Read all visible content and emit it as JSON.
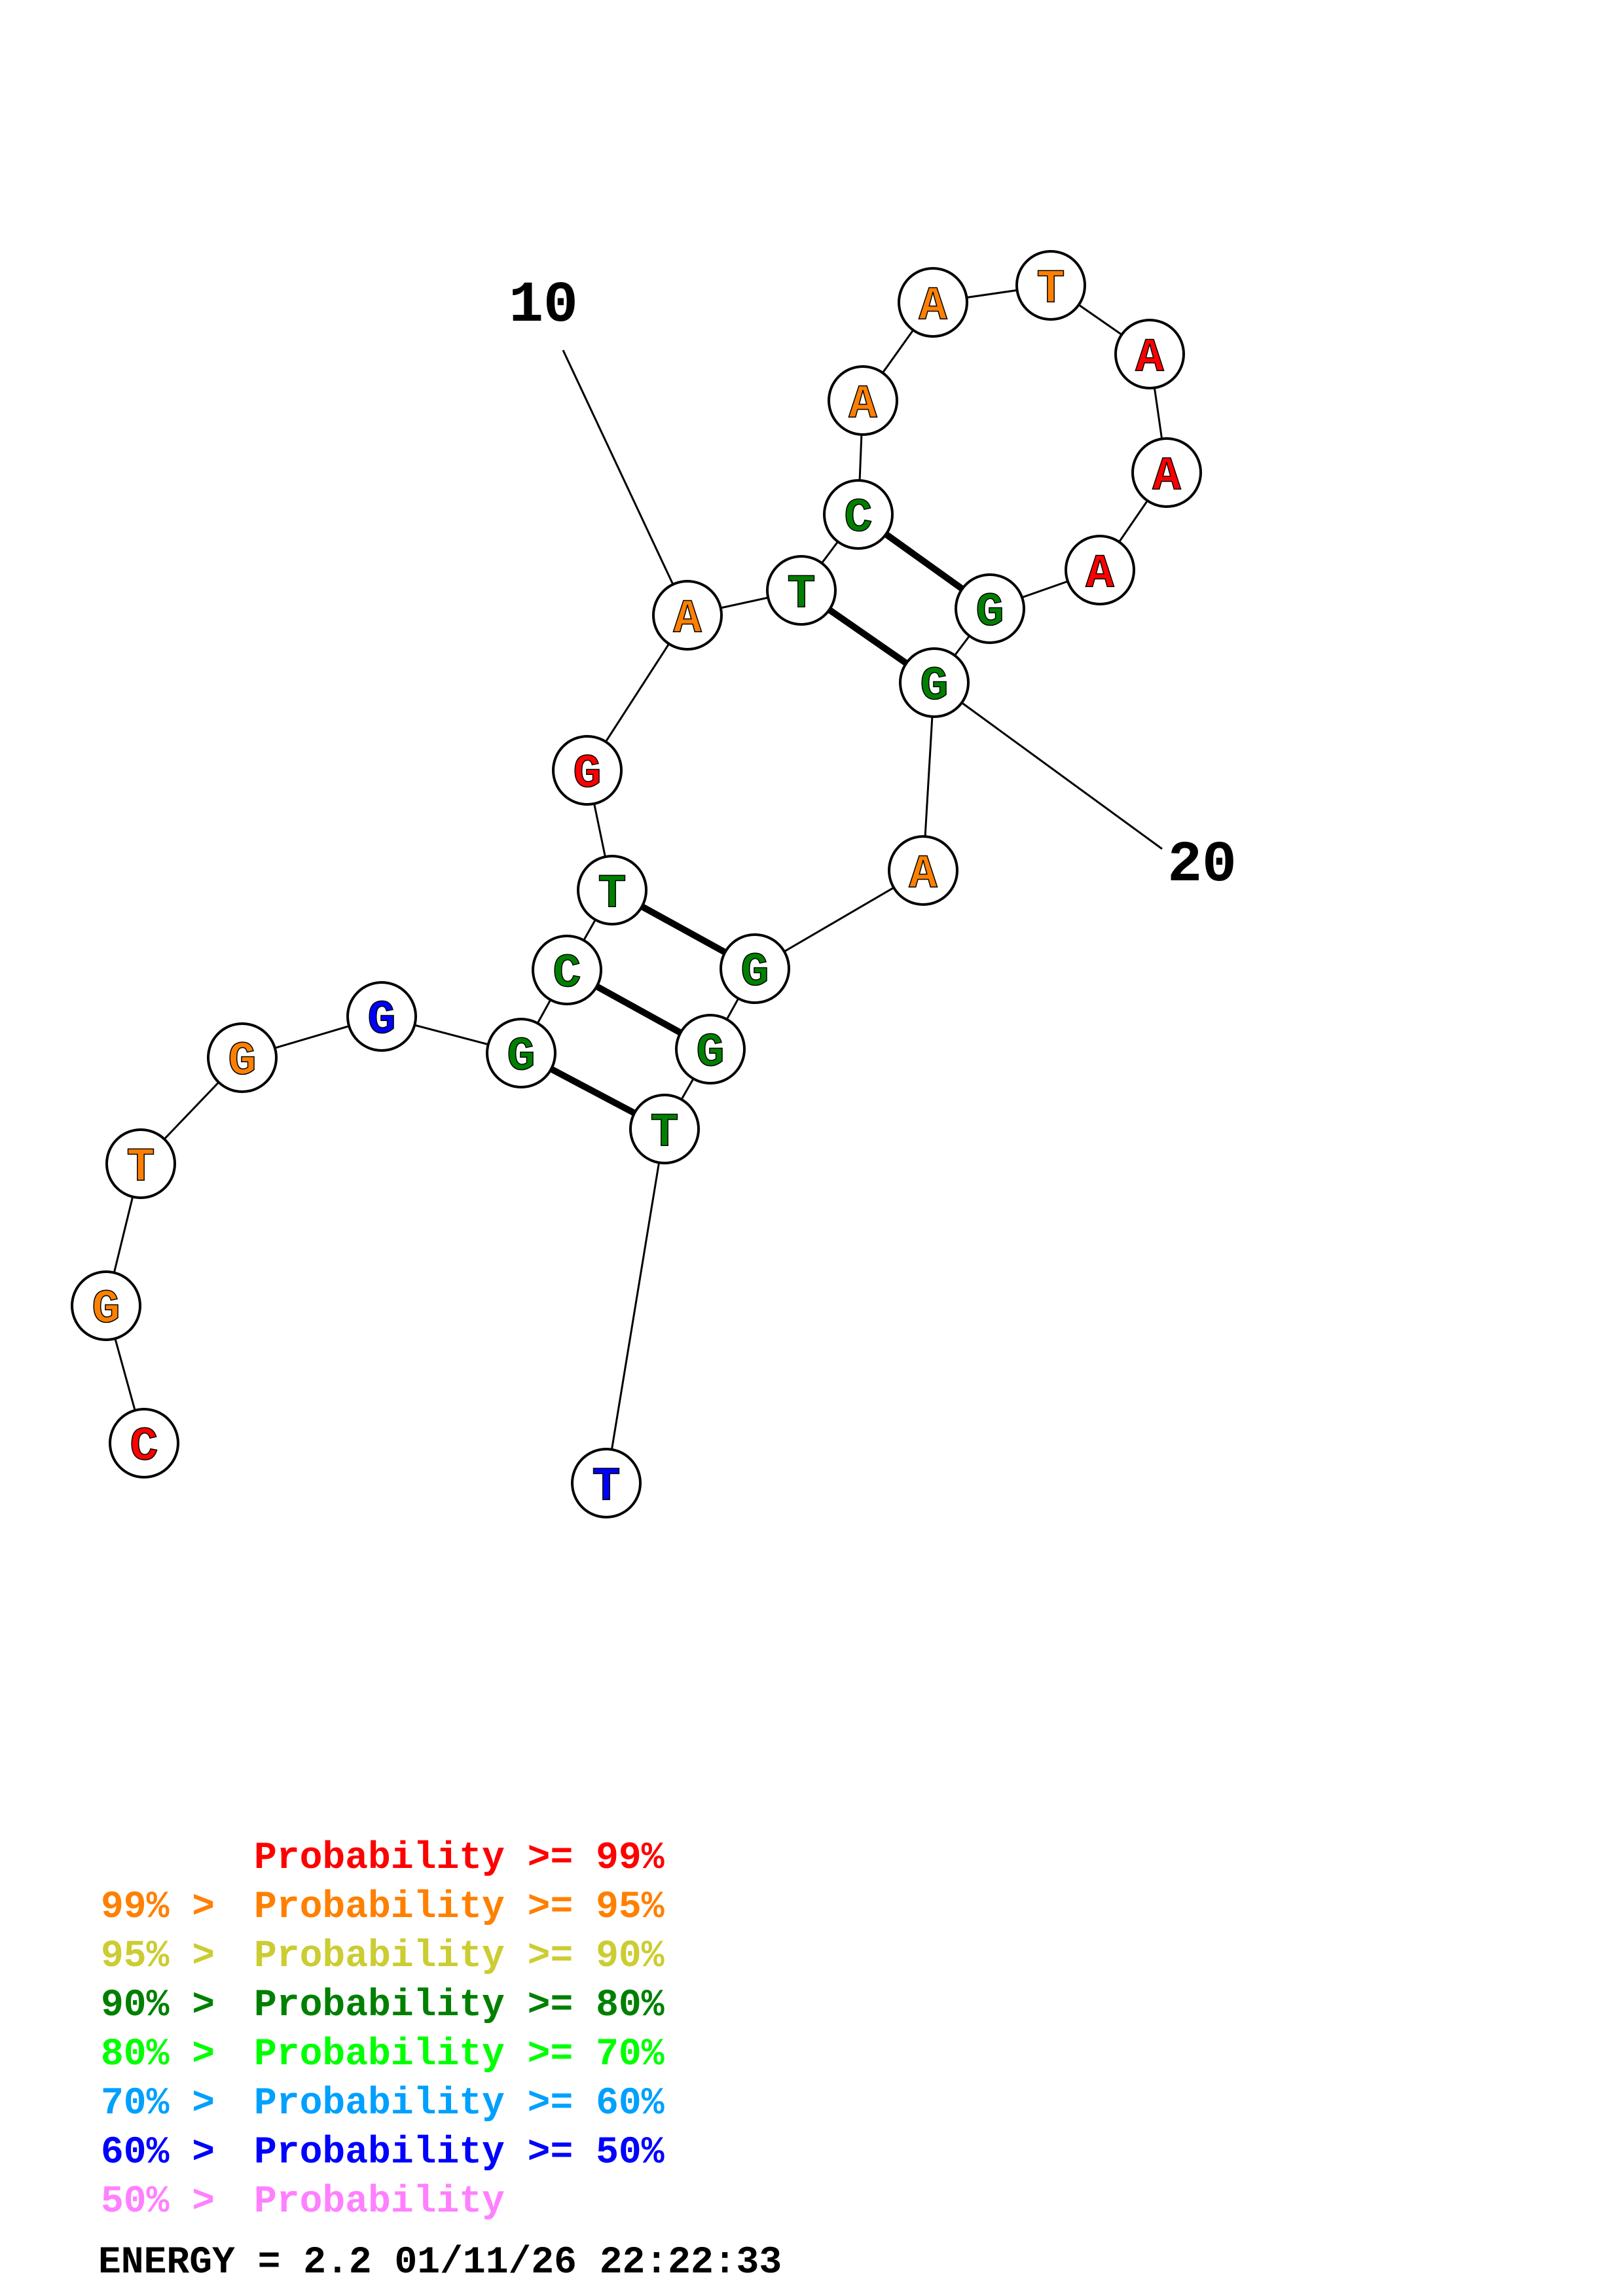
{
  "structure": {
    "nucleotides": [
      {
        "id": 1,
        "letter": "C",
        "color": "#ff0000"
      },
      {
        "id": 2,
        "letter": "G",
        "color": "#ff8000"
      },
      {
        "id": 3,
        "letter": "T",
        "color": "#ff8000"
      },
      {
        "id": 4,
        "letter": "G",
        "color": "#ff8000"
      },
      {
        "id": 5,
        "letter": "G",
        "color": "#0000ff"
      },
      {
        "id": 6,
        "letter": "G",
        "color": "#008000"
      },
      {
        "id": 7,
        "letter": "C",
        "color": "#008000"
      },
      {
        "id": 8,
        "letter": "T",
        "color": "#008000"
      },
      {
        "id": 9,
        "letter": "G",
        "color": "#ff0000"
      },
      {
        "id": 10,
        "letter": "A",
        "color": "#ff8000"
      },
      {
        "id": 11,
        "letter": "T",
        "color": "#008000"
      },
      {
        "id": 12,
        "letter": "C",
        "color": "#008000"
      },
      {
        "id": 13,
        "letter": "A",
        "color": "#ff8000"
      },
      {
        "id": 14,
        "letter": "A",
        "color": "#ff8000"
      },
      {
        "id": 15,
        "letter": "T",
        "color": "#ff8000"
      },
      {
        "id": 16,
        "letter": "A",
        "color": "#ff0000"
      },
      {
        "id": 17,
        "letter": "A",
        "color": "#ff0000"
      },
      {
        "id": 18,
        "letter": "A",
        "color": "#ff0000"
      },
      {
        "id": 19,
        "letter": "G",
        "color": "#008000"
      },
      {
        "id": 20,
        "letter": "G",
        "color": "#008000"
      },
      {
        "id": 21,
        "letter": "A",
        "color": "#ff8000"
      },
      {
        "id": 22,
        "letter": "G",
        "color": "#008000"
      },
      {
        "id": 23,
        "letter": "G",
        "color": "#008000"
      },
      {
        "id": 24,
        "letter": "T",
        "color": "#008000"
      },
      {
        "id": 25,
        "letter": "T",
        "color": "#0000ff"
      }
    ],
    "pairs": [
      [
        6,
        24
      ],
      [
        7,
        23
      ],
      [
        8,
        22
      ],
      [
        11,
        20
      ],
      [
        12,
        19
      ]
    ],
    "position_labels": [
      {
        "text": "10",
        "nucleotide": 10
      },
      {
        "text": "20",
        "nucleotide": 20
      }
    ]
  },
  "legend": [
    {
      "prefix": "",
      "text": "Probability >= 99%",
      "color": "#ff0000"
    },
    {
      "prefix": "99% > ",
      "text": "Probability >= 95%",
      "color": "#ff8000"
    },
    {
      "prefix": "95% > ",
      "text": "Probability >= 90%",
      "color": "#cccc33"
    },
    {
      "prefix": "90% > ",
      "text": "Probability >= 80%",
      "color": "#008000"
    },
    {
      "prefix": "80% > ",
      "text": "Probability >= 70%",
      "color": "#00ff00"
    },
    {
      "prefix": "70% > ",
      "text": "Probability >= 60%",
      "color": "#00a0ff"
    },
    {
      "prefix": "60% > ",
      "text": "Probability >= 50%",
      "color": "#0000ff"
    },
    {
      "prefix": "50% > ",
      "text": "Probability",
      "color": "#ff80ff"
    }
  ],
  "footer": {
    "energy_text": "ENERGY = 2.2  01/11/26 22:22:33"
  }
}
